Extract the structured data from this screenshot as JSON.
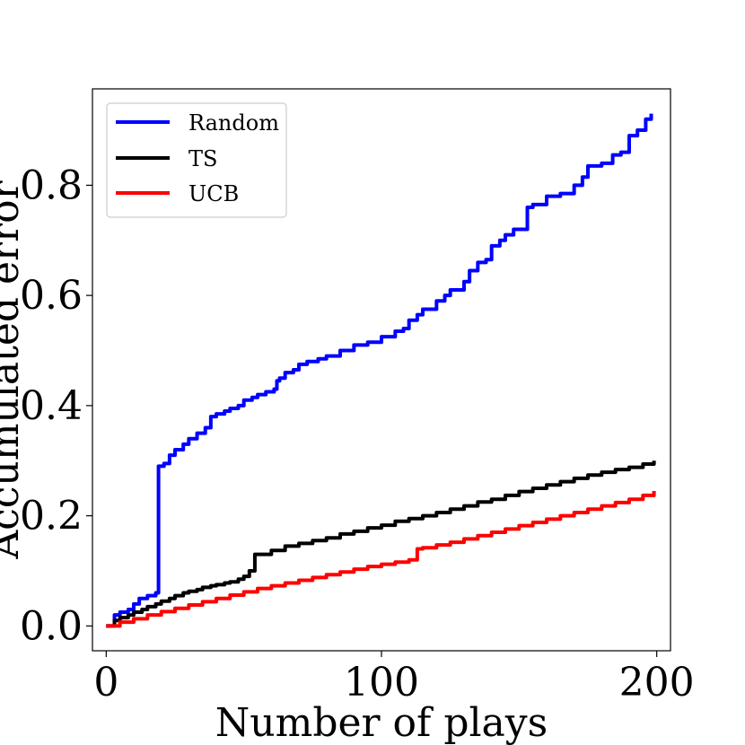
{
  "chart_data": {
    "type": "line",
    "xlabel": "Number of plays",
    "ylabel": "Accumulated error",
    "xlim": [
      -5,
      205
    ],
    "ylim": [
      -0.045,
      0.975
    ],
    "xticks": [
      0,
      100,
      200
    ],
    "xtick_labels": [
      "0",
      "100",
      "200"
    ],
    "yticks": [
      0.0,
      0.2,
      0.4,
      0.6,
      0.8
    ],
    "ytick_labels": [
      "0.0",
      "0.2",
      "0.4",
      "0.6",
      "0.8"
    ],
    "grid": false,
    "legend_position": "top-left",
    "series": [
      {
        "name": "Random",
        "color": "#0000ff",
        "x": [
          0,
          3,
          5,
          8,
          10,
          12,
          15,
          18,
          19,
          21,
          23,
          25,
          28,
          30,
          33,
          36,
          38,
          40,
          43,
          45,
          48,
          50,
          53,
          55,
          58,
          61,
          62,
          63,
          65,
          68,
          70,
          73,
          77,
          80,
          85,
          90,
          95,
          100,
          105,
          108,
          110,
          113,
          115,
          120,
          123,
          125,
          130,
          132,
          135,
          138,
          140,
          143,
          145,
          148,
          150,
          153,
          155,
          160,
          165,
          170,
          173,
          175,
          180,
          184,
          187,
          190,
          193,
          196,
          198
        ],
        "y": [
          0.0,
          0.02,
          0.025,
          0.03,
          0.04,
          0.05,
          0.055,
          0.06,
          0.29,
          0.295,
          0.31,
          0.32,
          0.33,
          0.34,
          0.35,
          0.36,
          0.38,
          0.385,
          0.39,
          0.395,
          0.4,
          0.41,
          0.415,
          0.42,
          0.425,
          0.43,
          0.445,
          0.45,
          0.46,
          0.465,
          0.475,
          0.48,
          0.485,
          0.49,
          0.5,
          0.51,
          0.515,
          0.525,
          0.535,
          0.54,
          0.555,
          0.565,
          0.575,
          0.59,
          0.6,
          0.61,
          0.625,
          0.645,
          0.66,
          0.665,
          0.69,
          0.7,
          0.71,
          0.72,
          0.72,
          0.76,
          0.765,
          0.78,
          0.785,
          0.8,
          0.815,
          0.835,
          0.84,
          0.855,
          0.86,
          0.89,
          0.9,
          0.92,
          0.93
        ]
      },
      {
        "name": "TS",
        "color": "#000000",
        "x": [
          0,
          3,
          5,
          8,
          10,
          13,
          15,
          18,
          20,
          23,
          25,
          28,
          30,
          33,
          35,
          38,
          40,
          43,
          45,
          48,
          50,
          52,
          54,
          55,
          60,
          65,
          70,
          75,
          80,
          85,
          90,
          95,
          100,
          105,
          110,
          115,
          120,
          125,
          130,
          135,
          140,
          145,
          150,
          155,
          160,
          165,
          170,
          175,
          180,
          185,
          190,
          195,
          199
        ],
        "y": [
          0.0,
          0.01,
          0.015,
          0.02,
          0.025,
          0.03,
          0.035,
          0.04,
          0.045,
          0.05,
          0.055,
          0.06,
          0.063,
          0.066,
          0.07,
          0.073,
          0.075,
          0.078,
          0.08,
          0.085,
          0.09,
          0.1,
          0.13,
          0.13,
          0.137,
          0.145,
          0.15,
          0.155,
          0.16,
          0.167,
          0.172,
          0.178,
          0.183,
          0.19,
          0.195,
          0.2,
          0.206,
          0.212,
          0.218,
          0.225,
          0.23,
          0.237,
          0.244,
          0.25,
          0.256,
          0.262,
          0.268,
          0.274,
          0.279,
          0.284,
          0.288,
          0.294,
          0.3
        ]
      },
      {
        "name": "UCB",
        "color": "#ff0000",
        "x": [
          0,
          5,
          10,
          15,
          20,
          25,
          30,
          35,
          40,
          45,
          50,
          55,
          60,
          65,
          70,
          75,
          80,
          85,
          90,
          95,
          100,
          105,
          110,
          112,
          113,
          115,
          120,
          125,
          130,
          135,
          140,
          145,
          150,
          155,
          160,
          165,
          170,
          175,
          180,
          185,
          190,
          195,
          199
        ],
        "y": [
          0.0,
          0.007,
          0.013,
          0.02,
          0.026,
          0.032,
          0.038,
          0.044,
          0.05,
          0.056,
          0.062,
          0.068,
          0.073,
          0.078,
          0.083,
          0.088,
          0.093,
          0.098,
          0.103,
          0.108,
          0.112,
          0.116,
          0.12,
          0.12,
          0.14,
          0.142,
          0.147,
          0.152,
          0.158,
          0.164,
          0.17,
          0.176,
          0.182,
          0.188,
          0.194,
          0.2,
          0.206,
          0.212,
          0.218,
          0.224,
          0.23,
          0.237,
          0.245
        ]
      }
    ]
  }
}
